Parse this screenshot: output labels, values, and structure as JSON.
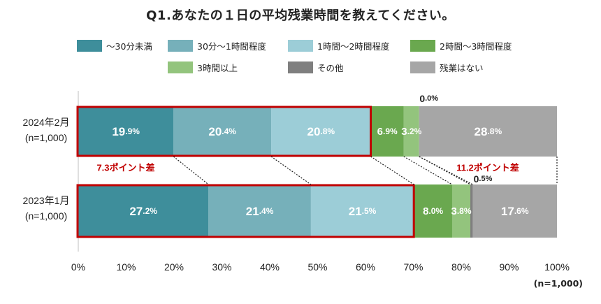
{
  "chart_data": {
    "type": "bar",
    "orientation": "horizontal",
    "stacked": true,
    "title": "Q1.あなたの１日の平均残業時間を教えてください。",
    "categories": [
      "2024年2月\n(n=1,000)",
      "2023年1月\n(n=1,000)"
    ],
    "series": [
      {
        "name": "～30分未満",
        "color": "#3e8e9b",
        "values": [
          19.9,
          27.2
        ]
      },
      {
        "name": "30分～1時間程度",
        "color": "#76b0ba",
        "values": [
          20.4,
          21.4
        ]
      },
      {
        "name": "1時間～2時間程度",
        "color": "#9ccdd7",
        "values": [
          20.8,
          21.5
        ]
      },
      {
        "name": "2時間～3時間程度",
        "color": "#6aa84f",
        "values": [
          6.9,
          8.0
        ]
      },
      {
        "name": "3時間以上",
        "color": "#93c47d",
        "values": [
          3.2,
          3.8
        ]
      },
      {
        "name": "その他",
        "color": "#7f7f7f",
        "values": [
          0.0,
          0.5
        ]
      },
      {
        "name": "残業はない",
        "color": "#a6a6a6",
        "values": [
          28.8,
          17.6
        ]
      }
    ],
    "data_labels": [
      [
        "19.9%",
        "20.4%",
        "20.8%",
        "6.9%",
        "3.2%",
        "0.0%",
        "28.8%"
      ],
      [
        "27.2%",
        "21.4%",
        "21.5%",
        "8.0%",
        "3.8%",
        "0.5%",
        "17.6%"
      ]
    ],
    "xlim": [
      0,
      100
    ],
    "xticks": [
      "0%",
      "10%",
      "20%",
      "30%",
      "40%",
      "50%",
      "60%",
      "70%",
      "80%",
      "90%",
      "100%"
    ],
    "legend_position": "top",
    "annotations": [
      "7.3ポイント差",
      "11.2ポイント差"
    ],
    "highlight_color": "#c00000",
    "annotation_color": "#c00000"
  },
  "footnote": "(n=1,000)"
}
